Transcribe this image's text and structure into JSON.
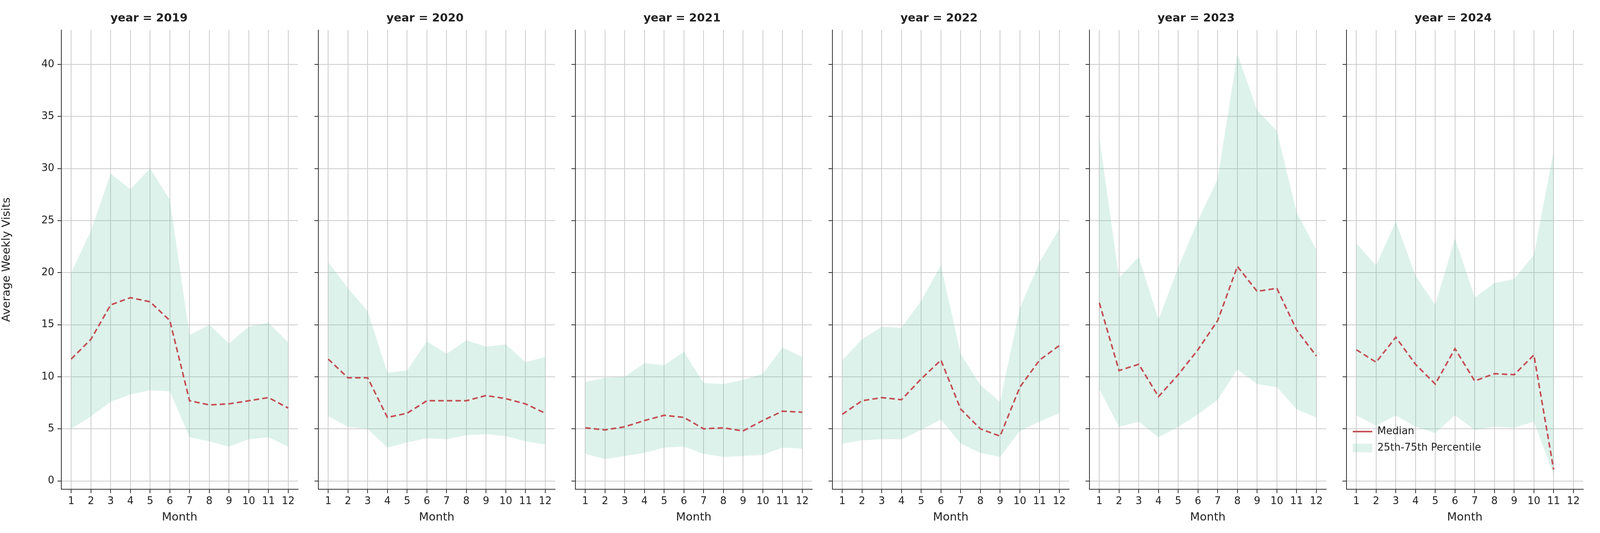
{
  "chart_data": [
    {
      "type": "line",
      "title": "year = 2019",
      "x_label": "Month",
      "y_label": "Average Weekly Visits",
      "categories": [
        1,
        2,
        3,
        4,
        5,
        6,
        7,
        8,
        9,
        10,
        11,
        12
      ],
      "ylim": [
        -0.8,
        43.3
      ],
      "yticks": [
        0,
        5,
        10,
        15,
        20,
        25,
        30,
        35,
        40
      ],
      "grid": true,
      "series": [
        {
          "name": "Median",
          "color": "#c44e52",
          "line_style": "dashed",
          "values": [
            11.7,
            13.6,
            16.9,
            17.6,
            17.2,
            15.4,
            7.7,
            7.3,
            7.4,
            7.7,
            8.0,
            7.0
          ]
        },
        {
          "name": "25th-75th Percentile",
          "type": "area",
          "color": "#66c2a5",
          "lower": [
            5.0,
            6.2,
            7.6,
            8.3,
            8.7,
            8.6,
            4.2,
            3.8,
            3.3,
            4.0,
            4.2,
            3.3
          ],
          "upper": [
            20.0,
            24.0,
            29.5,
            28.0,
            30.0,
            27.0,
            14.0,
            15.0,
            13.2,
            14.8,
            15.2,
            13.3
          ]
        }
      ]
    },
    {
      "type": "line",
      "title": "year = 2020",
      "x_label": "Month",
      "tick_labels": "x",
      "categories": [
        1,
        2,
        3,
        4,
        5,
        6,
        7,
        8,
        9,
        10,
        11,
        12
      ],
      "ylim": [
        -0.8,
        43.3
      ],
      "yticks": [
        0,
        5,
        10,
        15,
        20,
        25,
        30,
        35,
        40
      ],
      "grid": true,
      "series": [
        {
          "name": "Median",
          "color": "#c44e52",
          "line_style": "dashed",
          "values": [
            11.7,
            9.9,
            9.9,
            6.1,
            6.5,
            7.7,
            7.7,
            7.7,
            8.2,
            7.9,
            7.4,
            6.5
          ]
        },
        {
          "name": "25th-75th Percentile",
          "type": "area",
          "color": "#66c2a5",
          "lower": [
            6.2,
            5.2,
            5.0,
            3.2,
            3.7,
            4.1,
            4.0,
            4.4,
            4.5,
            4.3,
            3.8,
            3.5
          ],
          "upper": [
            21.0,
            18.5,
            16.3,
            10.4,
            10.6,
            13.4,
            12.2,
            13.5,
            12.9,
            13.1,
            11.4,
            11.9
          ]
        }
      ]
    },
    {
      "type": "line",
      "title": "year = 2021",
      "x_label": "Month",
      "tick_labels": "x",
      "categories": [
        1,
        2,
        3,
        4,
        5,
        6,
        7,
        8,
        9,
        10,
        11,
        12
      ],
      "ylim": [
        -0.8,
        43.3
      ],
      "yticks": [
        0,
        5,
        10,
        15,
        20,
        25,
        30,
        35,
        40
      ],
      "grid": true,
      "series": [
        {
          "name": "Median",
          "color": "#c44e52",
          "line_style": "dashed",
          "values": [
            5.1,
            4.9,
            5.2,
            5.8,
            6.3,
            6.1,
            5.0,
            5.1,
            4.8,
            5.8,
            6.7,
            6.6
          ]
        },
        {
          "name": "25th-75th Percentile",
          "type": "area",
          "color": "#66c2a5",
          "lower": [
            2.6,
            2.1,
            2.4,
            2.7,
            3.2,
            3.3,
            2.6,
            2.3,
            2.4,
            2.5,
            3.2,
            3.1
          ],
          "upper": [
            9.5,
            9.9,
            10.0,
            11.3,
            11.1,
            12.4,
            9.4,
            9.3,
            9.7,
            10.3,
            12.8,
            11.9
          ]
        }
      ]
    },
    {
      "type": "line",
      "title": "year = 2022",
      "x_label": "Month",
      "tick_labels": "x",
      "categories": [
        1,
        2,
        3,
        4,
        5,
        6,
        7,
        8,
        9,
        10,
        11,
        12
      ],
      "ylim": [
        -0.8,
        43.3
      ],
      "yticks": [
        0,
        5,
        10,
        15,
        20,
        25,
        30,
        35,
        40
      ],
      "grid": true,
      "series": [
        {
          "name": "Median",
          "color": "#c44e52",
          "line_style": "dashed",
          "values": [
            6.4,
            7.7,
            8.0,
            7.8,
            9.8,
            11.6,
            6.9,
            5.0,
            4.3,
            9.0,
            11.6,
            13.0
          ]
        },
        {
          "name": "25th-75th Percentile",
          "type": "area",
          "color": "#66c2a5",
          "lower": [
            3.6,
            3.9,
            4.0,
            4.0,
            4.9,
            5.9,
            3.6,
            2.7,
            2.3,
            4.8,
            5.7,
            6.5
          ],
          "upper": [
            11.6,
            13.6,
            14.8,
            14.7,
            17.3,
            20.7,
            12.2,
            9.2,
            7.6,
            16.6,
            21.0,
            24.2
          ]
        }
      ]
    },
    {
      "type": "line",
      "title": "year = 2023",
      "x_label": "Month",
      "tick_labels": "x",
      "categories": [
        1,
        2,
        3,
        4,
        5,
        6,
        7,
        8,
        9,
        10,
        11,
        12
      ],
      "ylim": [
        -0.8,
        43.3
      ],
      "yticks": [
        0,
        5,
        10,
        15,
        20,
        25,
        30,
        35,
        40
      ],
      "grid": true,
      "series": [
        {
          "name": "Median",
          "color": "#c44e52",
          "line_style": "dashed",
          "values": [
            17.1,
            10.6,
            11.2,
            8.1,
            10.2,
            12.6,
            15.4,
            20.6,
            18.2,
            18.5,
            14.5,
            12.0
          ]
        },
        {
          "name": "25th-75th Percentile",
          "type": "area",
          "color": "#66c2a5",
          "lower": [
            8.8,
            5.2,
            5.7,
            4.2,
            5.2,
            6.4,
            7.8,
            10.7,
            9.3,
            9.0,
            6.9,
            6.1
          ],
          "upper": [
            33.0,
            19.5,
            21.5,
            15.5,
            20.5,
            25.0,
            29.0,
            41.0,
            35.6,
            33.6,
            25.8,
            22.2
          ]
        }
      ]
    },
    {
      "type": "line",
      "title": "year = 2024",
      "x_label": "Month",
      "tick_labels": "x",
      "legend": "upper right",
      "categories": [
        1,
        2,
        3,
        4,
        5,
        6,
        7,
        8,
        9,
        10,
        11,
        12
      ],
      "ylim": [
        -0.8,
        43.3
      ],
      "yticks": [
        0,
        5,
        10,
        15,
        20,
        25,
        30,
        35,
        40
      ],
      "grid": true,
      "series": [
        {
          "name": "Median",
          "color": "#c44e52",
          "line_style": "dashed",
          "values": [
            12.6,
            11.4,
            13.8,
            11.2,
            9.3,
            12.7,
            9.6,
            10.3,
            10.2,
            12.1,
            1.1,
            null
          ]
        },
        {
          "name": "25th-75th Percentile",
          "type": "area",
          "color": "#66c2a5",
          "lower": [
            6.3,
            5.3,
            6.3,
            5.2,
            4.6,
            6.3,
            4.9,
            5.2,
            5.1,
            5.7,
            0.6,
            null
          ],
          "upper": [
            22.8,
            20.7,
            24.9,
            19.7,
            16.9,
            23.3,
            17.6,
            19.0,
            19.4,
            21.7,
            31.6,
            null
          ]
        }
      ]
    }
  ]
}
